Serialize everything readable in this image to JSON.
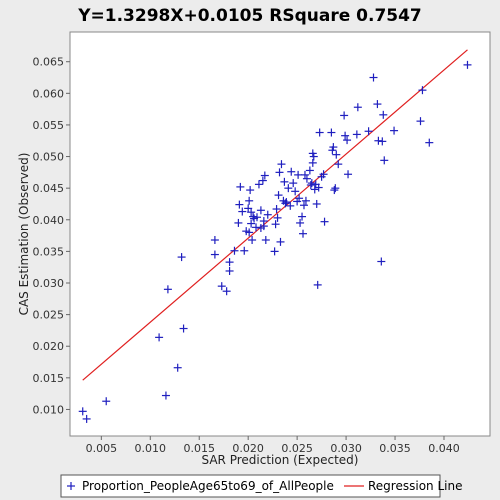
{
  "chart_data": {
    "type": "scatter",
    "title": "Y=1.3298X+0.0105    RSquare 0.7547",
    "xlabel": "SAR Prediction (Expected)",
    "ylabel": "CAS Estimation (Observed)",
    "xlim": [
      0.0018,
      0.0447
    ],
    "ylim": [
      0.0058,
      0.0697
    ],
    "xticks": [
      "0.005",
      "0.010",
      "0.015",
      "0.020",
      "0.025",
      "0.030",
      "0.035",
      "0.040"
    ],
    "yticks": [
      "0.010",
      "0.015",
      "0.020",
      "0.025",
      "0.030",
      "0.035",
      "0.040",
      "0.045",
      "0.050",
      "0.055",
      "0.060",
      "0.065"
    ],
    "grid": false,
    "legend_position": "bottom",
    "colors": {
      "points": "#1f1fbf",
      "regression": "#e02020",
      "background": "#ffffff",
      "page": "#ececec"
    },
    "regression": {
      "name": "Regression Line",
      "slope": 1.3298,
      "intercept": 0.0105,
      "x_range": [
        0.0031,
        0.0424
      ]
    },
    "series": [
      {
        "name": "Proportion_PeopleAge65to69_of_AllPeople",
        "marker": "plus",
        "points": [
          [
            0.0031,
            0.0097
          ],
          [
            0.0035,
            0.0085
          ],
          [
            0.0055,
            0.0113
          ],
          [
            0.0109,
            0.0214
          ],
          [
            0.0116,
            0.0122
          ],
          [
            0.0118,
            0.029
          ],
          [
            0.0128,
            0.0166
          ],
          [
            0.0132,
            0.0341
          ],
          [
            0.0134,
            0.0228
          ],
          [
            0.0166,
            0.0368
          ],
          [
            0.0166,
            0.0345
          ],
          [
            0.0173,
            0.0295
          ],
          [
            0.0178,
            0.0287
          ],
          [
            0.0181,
            0.0319
          ],
          [
            0.0181,
            0.0333
          ],
          [
            0.0186,
            0.0351
          ],
          [
            0.019,
            0.0395
          ],
          [
            0.0191,
            0.0424
          ],
          [
            0.0192,
            0.0452
          ],
          [
            0.0194,
            0.0413
          ],
          [
            0.0196,
            0.0351
          ],
          [
            0.0198,
            0.0382
          ],
          [
            0.02,
            0.0418
          ],
          [
            0.0201,
            0.038
          ],
          [
            0.0201,
            0.043
          ],
          [
            0.0202,
            0.0447
          ],
          [
            0.0203,
            0.0412
          ],
          [
            0.0203,
            0.0394
          ],
          [
            0.0204,
            0.0368
          ],
          [
            0.0205,
            0.0405
          ],
          [
            0.0206,
            0.0402
          ],
          [
            0.0208,
            0.0388
          ],
          [
            0.0209,
            0.0404
          ],
          [
            0.0211,
            0.0456
          ],
          [
            0.0213,
            0.0387
          ],
          [
            0.0213,
            0.0415
          ],
          [
            0.0215,
            0.0462
          ],
          [
            0.0216,
            0.0398
          ],
          [
            0.0216,
            0.039
          ],
          [
            0.0217,
            0.047
          ],
          [
            0.0218,
            0.0368
          ],
          [
            0.022,
            0.0408
          ],
          [
            0.0227,
            0.035
          ],
          [
            0.0228,
            0.0393
          ],
          [
            0.0229,
            0.0417
          ],
          [
            0.023,
            0.0403
          ],
          [
            0.0231,
            0.0439
          ],
          [
            0.0232,
            0.0475
          ],
          [
            0.0233,
            0.0365
          ],
          [
            0.0234,
            0.0488
          ],
          [
            0.0236,
            0.043
          ],
          [
            0.0237,
            0.046
          ],
          [
            0.0238,
            0.0426
          ],
          [
            0.0239,
            0.0428
          ],
          [
            0.0241,
            0.045
          ],
          [
            0.0243,
            0.0422
          ],
          [
            0.0244,
            0.0476
          ],
          [
            0.0246,
            0.0458
          ],
          [
            0.0248,
            0.0445
          ],
          [
            0.025,
            0.0429
          ],
          [
            0.0251,
            0.0471
          ],
          [
            0.0252,
            0.0434
          ],
          [
            0.0253,
            0.0395
          ],
          [
            0.0255,
            0.0405
          ],
          [
            0.0256,
            0.0378
          ],
          [
            0.0257,
            0.0423
          ],
          [
            0.0258,
            0.0471
          ],
          [
            0.0259,
            0.043
          ],
          [
            0.026,
            0.0465
          ],
          [
            0.0263,
            0.0478
          ],
          [
            0.0264,
            0.0455
          ],
          [
            0.0265,
            0.0458
          ],
          [
            0.0266,
            0.0505
          ],
          [
            0.0266,
            0.049
          ],
          [
            0.0267,
            0.05
          ],
          [
            0.0268,
            0.0448
          ],
          [
            0.0269,
            0.0456
          ],
          [
            0.027,
            0.0425
          ],
          [
            0.0271,
            0.0297
          ],
          [
            0.0272,
            0.0451
          ],
          [
            0.0273,
            0.0538
          ],
          [
            0.0275,
            0.0468
          ],
          [
            0.0277,
            0.0472
          ],
          [
            0.0278,
            0.0397
          ],
          [
            0.0285,
            0.0538
          ],
          [
            0.0286,
            0.051
          ],
          [
            0.0287,
            0.0515
          ],
          [
            0.0288,
            0.0447
          ],
          [
            0.0289,
            0.045
          ],
          [
            0.029,
            0.0503
          ],
          [
            0.0292,
            0.0488
          ],
          [
            0.0298,
            0.0565
          ],
          [
            0.0299,
            0.0533
          ],
          [
            0.0301,
            0.0526
          ],
          [
            0.0302,
            0.0472
          ],
          [
            0.0311,
            0.0535
          ],
          [
            0.0312,
            0.0578
          ],
          [
            0.0323,
            0.054
          ],
          [
            0.0328,
            0.0625
          ],
          [
            0.0332,
            0.0583
          ],
          [
            0.0333,
            0.0525
          ],
          [
            0.0336,
            0.0334
          ],
          [
            0.0337,
            0.0524
          ],
          [
            0.0338,
            0.0566
          ],
          [
            0.0339,
            0.0494
          ],
          [
            0.0349,
            0.0541
          ],
          [
            0.0376,
            0.0556
          ],
          [
            0.0378,
            0.0605
          ],
          [
            0.0385,
            0.0522
          ],
          [
            0.0424,
            0.0645
          ]
        ]
      }
    ]
  }
}
